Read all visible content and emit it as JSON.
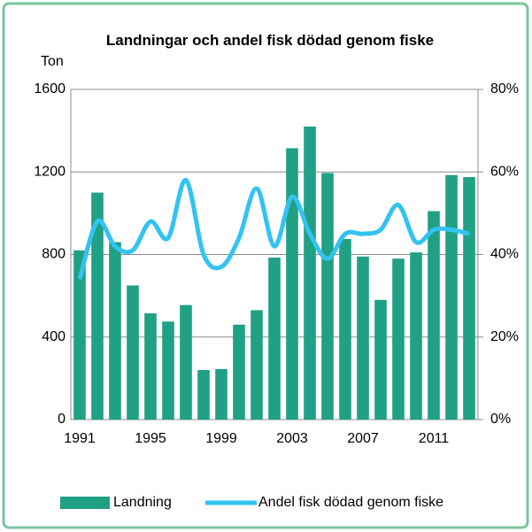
{
  "chart_data": {
    "type": "bar_line",
    "title": "Landningar och andel fisk dödad genom fiske",
    "ylabel": "Ton",
    "categories": [
      "1991",
      null,
      null,
      null,
      "1995",
      null,
      null,
      null,
      "1999",
      null,
      null,
      null,
      "2003",
      null,
      null,
      null,
      "2007",
      null,
      null,
      null,
      "2011",
      null,
      null
    ],
    "series": [
      {
        "name": "Landning",
        "color": "#20a084",
        "type": "bar",
        "values": [
          820,
          1100,
          860,
          650,
          515,
          475,
          555,
          240,
          245,
          460,
          530,
          785,
          1315,
          1420,
          1195,
          875,
          790,
          580,
          780,
          810,
          1010,
          1185,
          1175
        ]
      },
      {
        "name": "Andel fisk dödad genom fiske",
        "color": "#33c3f0",
        "type": "line",
        "axis": "y2",
        "values": [
          34,
          48,
          42,
          41,
          48,
          44,
          58,
          40,
          37,
          44,
          56,
          42,
          54,
          45,
          39,
          45,
          45,
          46,
          52,
          43,
          46,
          46,
          45
        ]
      }
    ],
    "ylim": [
      0,
      1600
    ],
    "yticks": [
      0,
      400,
      800,
      1200,
      1600
    ],
    "y2lim": [
      0,
      80
    ],
    "y2ticks": [
      {
        "value": 0,
        "label": "0%"
      },
      {
        "value": 20,
        "label": "20%"
      },
      {
        "value": 40,
        "label": "40%"
      },
      {
        "value": 60,
        "label": "60%"
      },
      {
        "value": 80,
        "label": "80%"
      }
    ],
    "grid": true,
    "legend": "bottom"
  }
}
